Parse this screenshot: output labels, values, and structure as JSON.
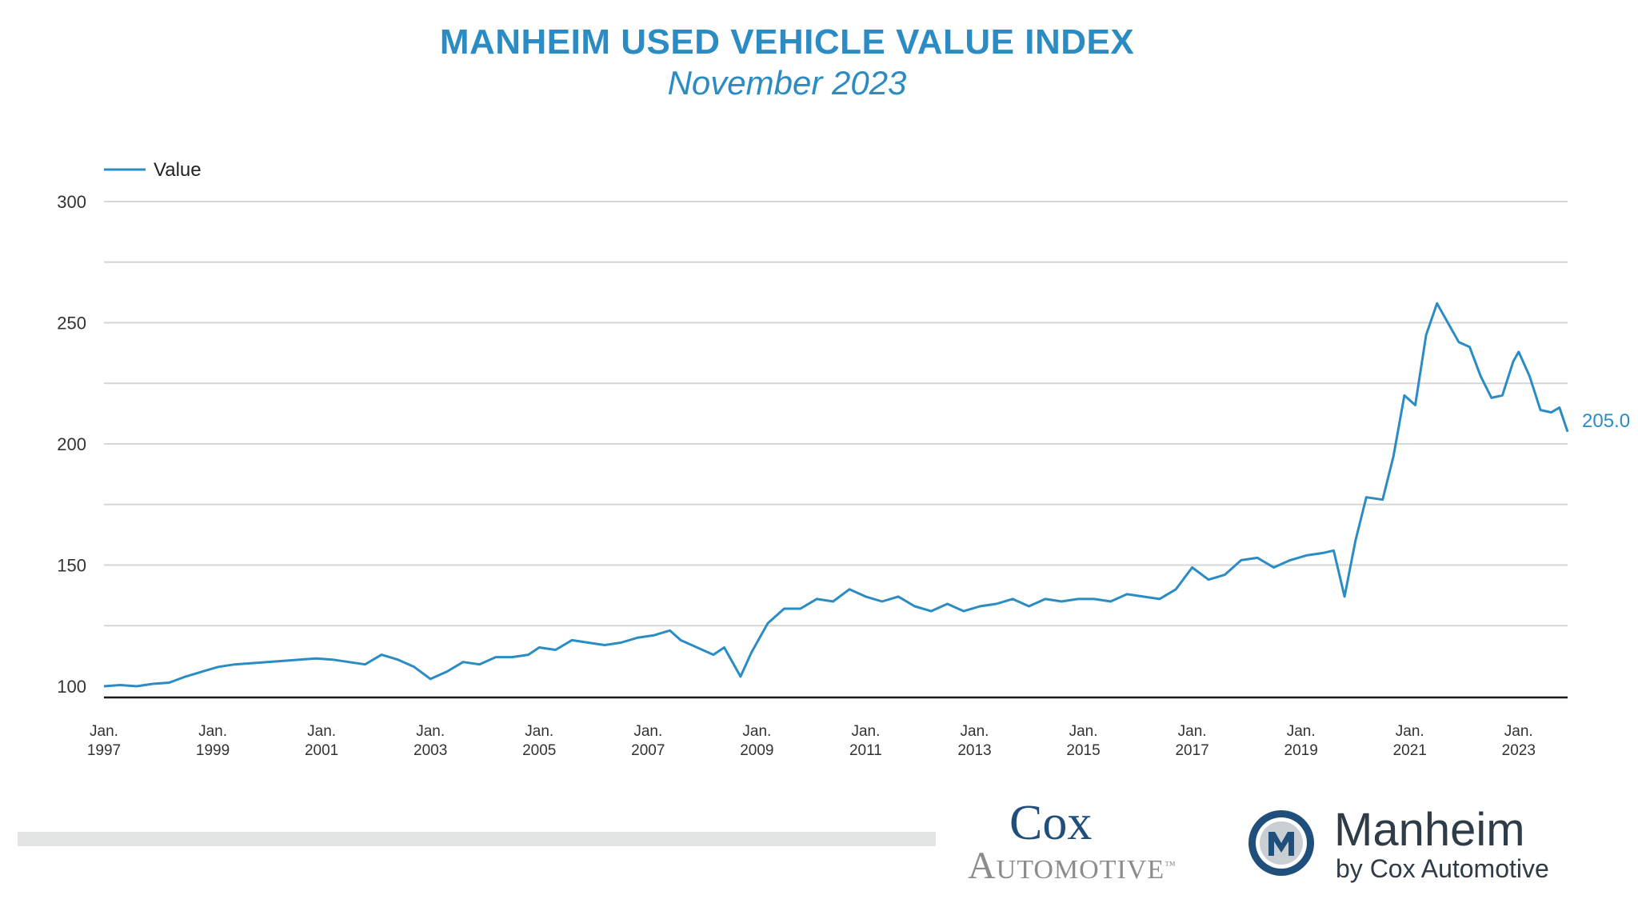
{
  "header": {
    "title": "MANHEIM USED VEHICLE VALUE INDEX",
    "subtitle": "November 2023"
  },
  "colors": {
    "series": "#2b8cc4",
    "title": "#2b8cc4",
    "grid": "#d6d6d6",
    "axis": "#1a1a1a",
    "tick_text": "#333333"
  },
  "chart_data": {
    "type": "line",
    "title": "MANHEIM USED VEHICLE VALUE INDEX",
    "subtitle": "November 2023",
    "legend": {
      "placement": "top-left",
      "entries": [
        "Value"
      ]
    },
    "ylim": [
      100,
      300
    ],
    "yticks": [
      100,
      150,
      200,
      250,
      300
    ],
    "grid": true,
    "xlim": [
      1997.0,
      2023.9
    ],
    "xticks": [
      {
        "x": 1997,
        "line1": "Jan.",
        "line2": "1997"
      },
      {
        "x": 1999,
        "line1": "Jan.",
        "line2": "1999"
      },
      {
        "x": 2001,
        "line1": "Jan.",
        "line2": "2001"
      },
      {
        "x": 2003,
        "line1": "Jan.",
        "line2": "2003"
      },
      {
        "x": 2005,
        "line1": "Jan.",
        "line2": "2005"
      },
      {
        "x": 2007,
        "line1": "Jan.",
        "line2": "2007"
      },
      {
        "x": 2009,
        "line1": "Jan.",
        "line2": "2009"
      },
      {
        "x": 2011,
        "line1": "Jan.",
        "line2": "2011"
      },
      {
        "x": 2013,
        "line1": "Jan.",
        "line2": "2013"
      },
      {
        "x": 2015,
        "line1": "Jan.",
        "line2": "2015"
      },
      {
        "x": 2017,
        "line1": "Jan.",
        "line2": "2017"
      },
      {
        "x": 2019,
        "line1": "Jan.",
        "line2": "2019"
      },
      {
        "x": 2021,
        "line1": "Jan.",
        "line2": "2021"
      },
      {
        "x": 2023,
        "line1": "Jan.",
        "line2": "2023"
      }
    ],
    "end_label": "205.0",
    "series": [
      {
        "name": "Value",
        "points": [
          [
            1997.0,
            100.0
          ],
          [
            1997.3,
            100.5
          ],
          [
            1997.6,
            100.0
          ],
          [
            1997.9,
            101.0
          ],
          [
            1998.2,
            101.5
          ],
          [
            1998.5,
            104.0
          ],
          [
            1998.8,
            106.0
          ],
          [
            1999.1,
            108.0
          ],
          [
            1999.4,
            109.0
          ],
          [
            1999.7,
            109.5
          ],
          [
            2000.0,
            110.0
          ],
          [
            2000.3,
            110.5
          ],
          [
            2000.6,
            111.0
          ],
          [
            2000.9,
            111.5
          ],
          [
            2001.2,
            111.0
          ],
          [
            2001.5,
            110.0
          ],
          [
            2001.8,
            109.0
          ],
          [
            2002.1,
            113.0
          ],
          [
            2002.4,
            111.0
          ],
          [
            2002.7,
            108.0
          ],
          [
            2003.0,
            103.0
          ],
          [
            2003.3,
            106.0
          ],
          [
            2003.6,
            110.0
          ],
          [
            2003.9,
            109.0
          ],
          [
            2004.2,
            112.0
          ],
          [
            2004.5,
            112.0
          ],
          [
            2004.8,
            113.0
          ],
          [
            2005.0,
            116.0
          ],
          [
            2005.3,
            115.0
          ],
          [
            2005.6,
            119.0
          ],
          [
            2005.9,
            118.0
          ],
          [
            2006.2,
            117.0
          ],
          [
            2006.5,
            118.0
          ],
          [
            2006.8,
            120.0
          ],
          [
            2007.1,
            121.0
          ],
          [
            2007.4,
            123.0
          ],
          [
            2007.6,
            119.0
          ],
          [
            2007.9,
            116.0
          ],
          [
            2008.2,
            113.0
          ],
          [
            2008.4,
            116.0
          ],
          [
            2008.7,
            104.0
          ],
          [
            2008.9,
            114.0
          ],
          [
            2009.2,
            126.0
          ],
          [
            2009.5,
            132.0
          ],
          [
            2009.8,
            132.0
          ],
          [
            2010.1,
            136.0
          ],
          [
            2010.4,
            135.0
          ],
          [
            2010.7,
            140.0
          ],
          [
            2011.0,
            137.0
          ],
          [
            2011.3,
            135.0
          ],
          [
            2011.6,
            137.0
          ],
          [
            2011.9,
            133.0
          ],
          [
            2012.2,
            131.0
          ],
          [
            2012.5,
            134.0
          ],
          [
            2012.8,
            131.0
          ],
          [
            2013.1,
            133.0
          ],
          [
            2013.4,
            134.0
          ],
          [
            2013.7,
            136.0
          ],
          [
            2014.0,
            133.0
          ],
          [
            2014.3,
            136.0
          ],
          [
            2014.6,
            135.0
          ],
          [
            2014.9,
            136.0
          ],
          [
            2015.2,
            136.0
          ],
          [
            2015.5,
            135.0
          ],
          [
            2015.8,
            138.0
          ],
          [
            2016.1,
            137.0
          ],
          [
            2016.4,
            136.0
          ],
          [
            2016.7,
            140.0
          ],
          [
            2017.0,
            149.0
          ],
          [
            2017.3,
            144.0
          ],
          [
            2017.6,
            146.0
          ],
          [
            2017.9,
            152.0
          ],
          [
            2018.2,
            153.0
          ],
          [
            2018.5,
            149.0
          ],
          [
            2018.8,
            152.0
          ],
          [
            2019.1,
            154.0
          ],
          [
            2019.4,
            155.0
          ],
          [
            2019.6,
            156.0
          ],
          [
            2019.8,
            137.0
          ],
          [
            2020.0,
            160.0
          ],
          [
            2020.2,
            178.0
          ],
          [
            2020.5,
            177.0
          ],
          [
            2020.7,
            195.0
          ],
          [
            2020.9,
            220.0
          ],
          [
            2021.1,
            216.0
          ],
          [
            2021.3,
            245.0
          ],
          [
            2021.5,
            258.0
          ],
          [
            2021.7,
            250.0
          ],
          [
            2021.9,
            242.0
          ],
          [
            2022.1,
            240.0
          ],
          [
            2022.3,
            228.0
          ],
          [
            2022.5,
            219.0
          ],
          [
            2022.7,
            220.0
          ],
          [
            2022.9,
            234.0
          ],
          [
            2023.0,
            238.0
          ],
          [
            2023.2,
            228.0
          ],
          [
            2023.4,
            214.0
          ],
          [
            2023.6,
            213.0
          ],
          [
            2023.75,
            215.0
          ],
          [
            2023.9,
            205.0
          ]
        ]
      }
    ]
  },
  "footer": {
    "cox_line1": "Cox",
    "cox_line2": "Automotive",
    "cox_tm": "™",
    "manheim_name": "Manheim",
    "manheim_by": "by Cox Automotive"
  }
}
